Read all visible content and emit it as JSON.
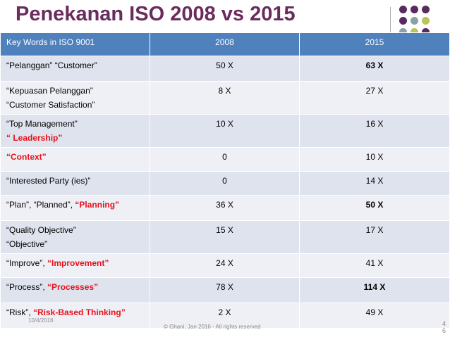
{
  "title": "Penekanan ISO 2008 vs 2015",
  "accent_colors": {
    "title": "#6a2c5c",
    "header": "#4f81bd",
    "row_light": "#dfe3ee",
    "row_alt": "#eef0f6",
    "highlight": "#e8101a",
    "dot_purple": "#5a2a5e",
    "dot_gray": "#8aa0a8",
    "dot_olive": "#b9c45a"
  },
  "table": {
    "headers": [
      "Key Words in ISO 9001",
      "2008",
      "2015"
    ],
    "rows": [
      {
        "kw": [
          {
            "t": "“Pelanggan” “Customer”",
            "red": false
          }
        ],
        "v2008": "50 X",
        "v2015": "63 X",
        "big": true
      },
      {
        "kw": [
          {
            "t": "“Kepuasan Pelanggan”",
            "red": false,
            "br": true
          },
          {
            "t": "“Customer Satisfaction”",
            "red": false
          }
        ],
        "v2008": "8 X",
        "v2015": "27 X",
        "big": false
      },
      {
        "kw": [
          {
            "t": "“Top Management”",
            "red": false,
            "br": true
          },
          {
            "t": "“ Leadership”",
            "red": true
          }
        ],
        "v2008": "10 X",
        "v2015": "16 X",
        "big": false
      },
      {
        "kw": [
          {
            "t": "“Context”",
            "red": true
          }
        ],
        "v2008": "0",
        "v2015": "10 X",
        "big": false
      },
      {
        "kw": [
          {
            "t": "“Interested Party (ies)”",
            "red": false
          }
        ],
        "v2008": "0",
        "v2015": "14 X",
        "big": false
      },
      {
        "kw": [
          {
            "t": "“Plan”, “Planned”, ",
            "red": false
          },
          {
            "t": "“Planning”",
            "red": true
          }
        ],
        "v2008": "36 X",
        "v2015": "50 X",
        "big": true
      },
      {
        "kw": [
          {
            "t": "“Quality Objective”",
            "red": false,
            "br": true
          },
          {
            "t": "“Objective”",
            "red": false
          }
        ],
        "v2008": "15 X",
        "v2015": "17 X",
        "big": false
      },
      {
        "kw": [
          {
            "t": "“Improve”, ",
            "red": false
          },
          {
            "t": "“Improvement”",
            "red": true
          }
        ],
        "v2008": "24 X",
        "v2015": "41 X",
        "big": false
      },
      {
        "kw": [
          {
            "t": "“Process”, ",
            "red": false
          },
          {
            "t": "“Processes”",
            "red": true
          }
        ],
        "v2008": "78 X",
        "v2015": "114 X",
        "big": true
      },
      {
        "kw": [
          {
            "t": "“Risk”, ",
            "red": false
          },
          {
            "t": "“Risk-Based Thinking”",
            "red": true
          }
        ],
        "v2008": "2 X",
        "v2015": "49 X",
        "big": false
      }
    ]
  },
  "footer": {
    "date": "10/4/2016",
    "copyright": "© Ghani, Jan 2016 - All rights reserved",
    "page": "4\n6"
  }
}
